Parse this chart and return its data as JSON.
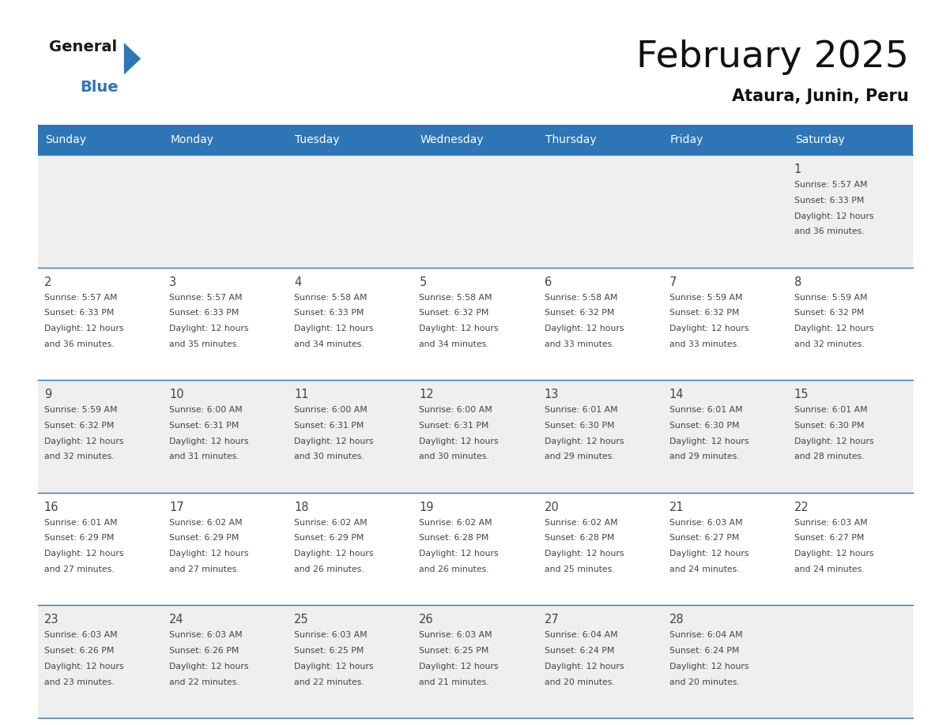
{
  "title": "February 2025",
  "subtitle": "Ataura, Junin, Peru",
  "header_bg": "#2E75B6",
  "header_text_color": "#FFFFFF",
  "cell_bg_even": "#EFEFEF",
  "cell_bg_odd": "#FFFFFF",
  "border_color": "#2E75B6",
  "text_color": "#444444",
  "days_of_week": [
    "Sunday",
    "Monday",
    "Tuesday",
    "Wednesday",
    "Thursday",
    "Friday",
    "Saturday"
  ],
  "calendar_data": [
    [
      null,
      null,
      null,
      null,
      null,
      null,
      {
        "day": "1",
        "sunrise": "5:57 AM",
        "sunset": "6:33 PM",
        "daylight_line1": "Daylight: 12 hours",
        "daylight_line2": "and 36 minutes."
      }
    ],
    [
      {
        "day": "2",
        "sunrise": "5:57 AM",
        "sunset": "6:33 PM",
        "daylight_line1": "Daylight: 12 hours",
        "daylight_line2": "and 36 minutes."
      },
      {
        "day": "3",
        "sunrise": "5:57 AM",
        "sunset": "6:33 PM",
        "daylight_line1": "Daylight: 12 hours",
        "daylight_line2": "and 35 minutes."
      },
      {
        "day": "4",
        "sunrise": "5:58 AM",
        "sunset": "6:33 PM",
        "daylight_line1": "Daylight: 12 hours",
        "daylight_line2": "and 34 minutes."
      },
      {
        "day": "5",
        "sunrise": "5:58 AM",
        "sunset": "6:32 PM",
        "daylight_line1": "Daylight: 12 hours",
        "daylight_line2": "and 34 minutes."
      },
      {
        "day": "6",
        "sunrise": "5:58 AM",
        "sunset": "6:32 PM",
        "daylight_line1": "Daylight: 12 hours",
        "daylight_line2": "and 33 minutes."
      },
      {
        "day": "7",
        "sunrise": "5:59 AM",
        "sunset": "6:32 PM",
        "daylight_line1": "Daylight: 12 hours",
        "daylight_line2": "and 33 minutes."
      },
      {
        "day": "8",
        "sunrise": "5:59 AM",
        "sunset": "6:32 PM",
        "daylight_line1": "Daylight: 12 hours",
        "daylight_line2": "and 32 minutes."
      }
    ],
    [
      {
        "day": "9",
        "sunrise": "5:59 AM",
        "sunset": "6:32 PM",
        "daylight_line1": "Daylight: 12 hours",
        "daylight_line2": "and 32 minutes."
      },
      {
        "day": "10",
        "sunrise": "6:00 AM",
        "sunset": "6:31 PM",
        "daylight_line1": "Daylight: 12 hours",
        "daylight_line2": "and 31 minutes."
      },
      {
        "day": "11",
        "sunrise": "6:00 AM",
        "sunset": "6:31 PM",
        "daylight_line1": "Daylight: 12 hours",
        "daylight_line2": "and 30 minutes."
      },
      {
        "day": "12",
        "sunrise": "6:00 AM",
        "sunset": "6:31 PM",
        "daylight_line1": "Daylight: 12 hours",
        "daylight_line2": "and 30 minutes."
      },
      {
        "day": "13",
        "sunrise": "6:01 AM",
        "sunset": "6:30 PM",
        "daylight_line1": "Daylight: 12 hours",
        "daylight_line2": "and 29 minutes."
      },
      {
        "day": "14",
        "sunrise": "6:01 AM",
        "sunset": "6:30 PM",
        "daylight_line1": "Daylight: 12 hours",
        "daylight_line2": "and 29 minutes."
      },
      {
        "day": "15",
        "sunrise": "6:01 AM",
        "sunset": "6:30 PM",
        "daylight_line1": "Daylight: 12 hours",
        "daylight_line2": "and 28 minutes."
      }
    ],
    [
      {
        "day": "16",
        "sunrise": "6:01 AM",
        "sunset": "6:29 PM",
        "daylight_line1": "Daylight: 12 hours",
        "daylight_line2": "and 27 minutes."
      },
      {
        "day": "17",
        "sunrise": "6:02 AM",
        "sunset": "6:29 PM",
        "daylight_line1": "Daylight: 12 hours",
        "daylight_line2": "and 27 minutes."
      },
      {
        "day": "18",
        "sunrise": "6:02 AM",
        "sunset": "6:29 PM",
        "daylight_line1": "Daylight: 12 hours",
        "daylight_line2": "and 26 minutes."
      },
      {
        "day": "19",
        "sunrise": "6:02 AM",
        "sunset": "6:28 PM",
        "daylight_line1": "Daylight: 12 hours",
        "daylight_line2": "and 26 minutes."
      },
      {
        "day": "20",
        "sunrise": "6:02 AM",
        "sunset": "6:28 PM",
        "daylight_line1": "Daylight: 12 hours",
        "daylight_line2": "and 25 minutes."
      },
      {
        "day": "21",
        "sunrise": "6:03 AM",
        "sunset": "6:27 PM",
        "daylight_line1": "Daylight: 12 hours",
        "daylight_line2": "and 24 minutes."
      },
      {
        "day": "22",
        "sunrise": "6:03 AM",
        "sunset": "6:27 PM",
        "daylight_line1": "Daylight: 12 hours",
        "daylight_line2": "and 24 minutes."
      }
    ],
    [
      {
        "day": "23",
        "sunrise": "6:03 AM",
        "sunset": "6:26 PM",
        "daylight_line1": "Daylight: 12 hours",
        "daylight_line2": "and 23 minutes."
      },
      {
        "day": "24",
        "sunrise": "6:03 AM",
        "sunset": "6:26 PM",
        "daylight_line1": "Daylight: 12 hours",
        "daylight_line2": "and 22 minutes."
      },
      {
        "day": "25",
        "sunrise": "6:03 AM",
        "sunset": "6:25 PM",
        "daylight_line1": "Daylight: 12 hours",
        "daylight_line2": "and 22 minutes."
      },
      {
        "day": "26",
        "sunrise": "6:03 AM",
        "sunset": "6:25 PM",
        "daylight_line1": "Daylight: 12 hours",
        "daylight_line2": "and 21 minutes."
      },
      {
        "day": "27",
        "sunrise": "6:04 AM",
        "sunset": "6:24 PM",
        "daylight_line1": "Daylight: 12 hours",
        "daylight_line2": "and 20 minutes."
      },
      {
        "day": "28",
        "sunrise": "6:04 AM",
        "sunset": "6:24 PM",
        "daylight_line1": "Daylight: 12 hours",
        "daylight_line2": "and 20 minutes."
      },
      null
    ]
  ],
  "logo_general_color": "#1a1a1a",
  "logo_blue_color": "#2E75B6",
  "logo_triangle_color": "#2E75B6"
}
